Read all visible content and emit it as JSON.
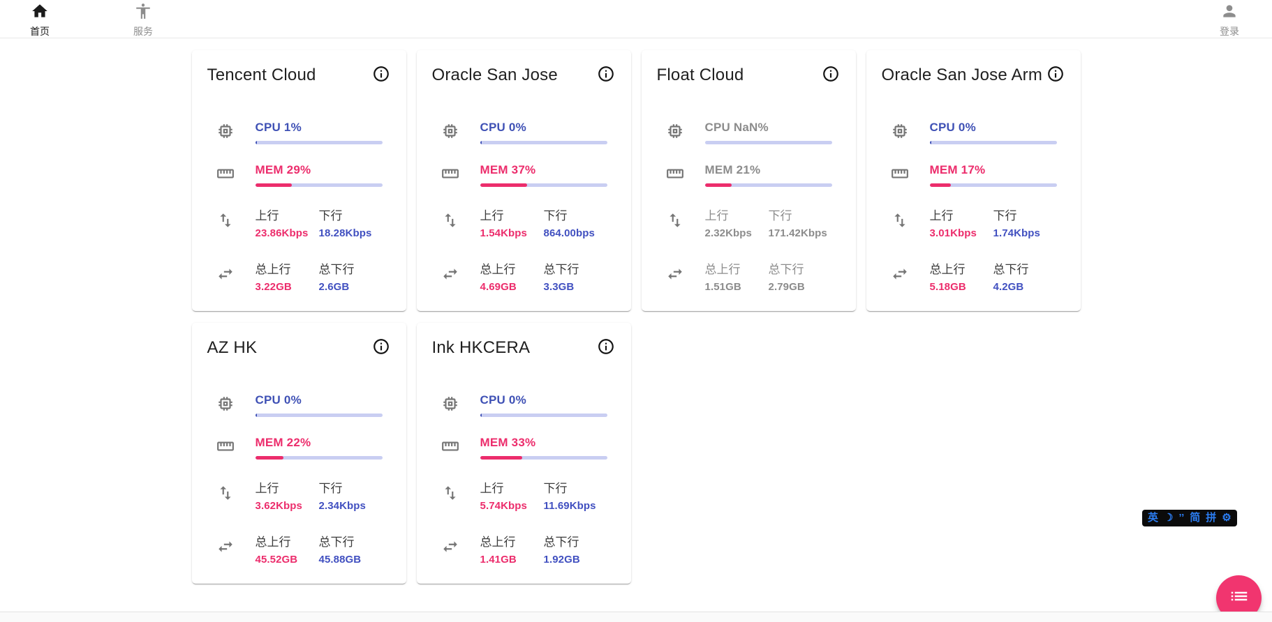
{
  "navbar": {
    "items": [
      {
        "label": "首页",
        "icon": "home-icon",
        "active": true
      },
      {
        "label": "服务",
        "icon": "accessibility-icon",
        "active": false
      }
    ],
    "login": {
      "label": "登录",
      "icon": "person-icon"
    }
  },
  "labels": {
    "up": "上行",
    "down": "下行",
    "total_up": "总上行",
    "total_down": "总下行"
  },
  "colors": {
    "cpu_blue": "#3f51b5",
    "value_blue": "#4150c0",
    "pink": "#ec2d6c",
    "bar_track": "#c9cef2",
    "fab_pink": "#f1356f",
    "offline_gray": "#8c8c8c"
  },
  "servers": [
    {
      "name": "Tencent Cloud",
      "cpu_text": "CPU 1%",
      "cpu_pct": 1,
      "mem_text": "MEM 29%",
      "mem_pct": 29,
      "up": "23.86Kbps",
      "down": "18.28Kbps",
      "total_up": "3.22GB",
      "total_down": "2.6GB",
      "online": true
    },
    {
      "name": "Oracle San Jose",
      "cpu_text": "CPU 0%",
      "cpu_pct": 0,
      "mem_text": "MEM 37%",
      "mem_pct": 37,
      "up": "1.54Kbps",
      "down": "864.00bps",
      "total_up": "4.69GB",
      "total_down": "3.3GB",
      "online": true
    },
    {
      "name": "Float Cloud",
      "cpu_text": "CPU NaN%",
      "cpu_pct": null,
      "mem_text": "MEM 21%",
      "mem_pct": 21,
      "up": "2.32Kbps",
      "down": "171.42Kbps",
      "total_up": "1.51GB",
      "total_down": "2.79GB",
      "online": false
    },
    {
      "name": "Oracle San Jose Arm",
      "cpu_text": "CPU 0%",
      "cpu_pct": 0,
      "mem_text": "MEM 17%",
      "mem_pct": 17,
      "up": "3.01Kbps",
      "down": "1.74Kbps",
      "total_up": "5.18GB",
      "total_down": "4.2GB",
      "online": true
    },
    {
      "name": "AZ HK",
      "cpu_text": "CPU 0%",
      "cpu_pct": 0,
      "mem_text": "MEM 22%",
      "mem_pct": 22,
      "up": "3.62Kbps",
      "down": "2.34Kbps",
      "total_up": "45.52GB",
      "total_down": "45.88GB",
      "online": true
    },
    {
      "name": "Ink HKCERA",
      "cpu_text": "CPU 0%",
      "cpu_pct": 0,
      "mem_text": "MEM 33%",
      "mem_pct": 33,
      "up": "5.74Kbps",
      "down": "11.69Kbps",
      "total_up": "1.41GB",
      "total_down": "1.92GB",
      "online": true
    }
  ],
  "ime_bar": {
    "items": [
      "英",
      "☽",
      "’’",
      "简",
      "拼",
      "⚙"
    ]
  },
  "fab": {
    "icon": "list-icon"
  }
}
